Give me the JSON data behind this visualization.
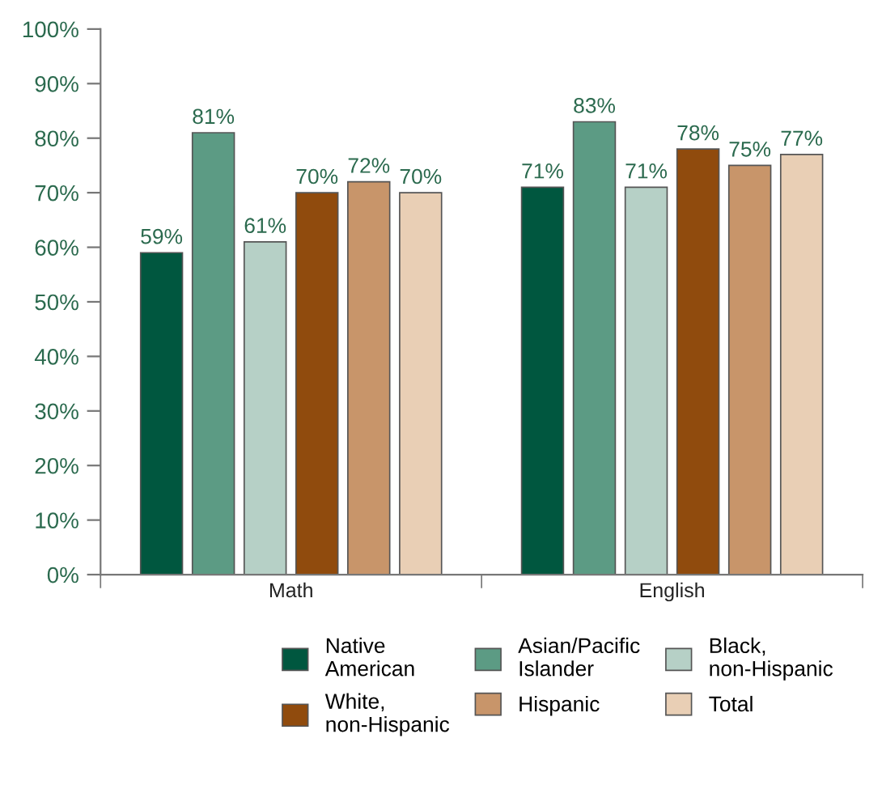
{
  "chart_data": {
    "type": "bar",
    "categories": [
      "Math",
      "English"
    ],
    "series": [
      {
        "name": "Native\nAmerican",
        "color": "#00573f",
        "values": [
          59,
          71
        ],
        "value_labels": [
          "59%",
          "71%"
        ]
      },
      {
        "name": "Asian/Pacific\nIslander",
        "color": "#5c9b84",
        "values": [
          81,
          83
        ],
        "value_labels": [
          "81%",
          "83%"
        ]
      },
      {
        "name": "Black,\nnon-Hispanic",
        "color": "#b6d0c6",
        "values": [
          61,
          71
        ],
        "value_labels": [
          "61%",
          "71%"
        ]
      },
      {
        "name": "White,\nnon-Hispanic",
        "color": "#904b0d",
        "values": [
          70,
          78
        ],
        "value_labels": [
          "70%",
          "78%"
        ]
      },
      {
        "name": "Hispanic",
        "color": "#c8956a",
        "values": [
          72,
          75
        ],
        "value_labels": [
          "72%",
          "75%"
        ]
      },
      {
        "name": "Total",
        "color": "#e9cfb5",
        "values": [
          70,
          77
        ],
        "value_labels": [
          "70%",
          "77%"
        ]
      }
    ],
    "ylim": [
      0,
      100
    ],
    "yticks": [
      {
        "value": 0,
        "label": "0%"
      },
      {
        "value": 10,
        "label": "10%"
      },
      {
        "value": 20,
        "label": "20%"
      },
      {
        "value": 30,
        "label": "30%"
      },
      {
        "value": 40,
        "label": "40%"
      },
      {
        "value": 50,
        "label": "50%"
      },
      {
        "value": 60,
        "label": "60%"
      },
      {
        "value": 70,
        "label": "70%"
      },
      {
        "value": 80,
        "label": "80%"
      },
      {
        "value": 90,
        "label": "90%"
      },
      {
        "value": 100,
        "label": "100%"
      }
    ],
    "grid": false,
    "legend": "bottom"
  }
}
